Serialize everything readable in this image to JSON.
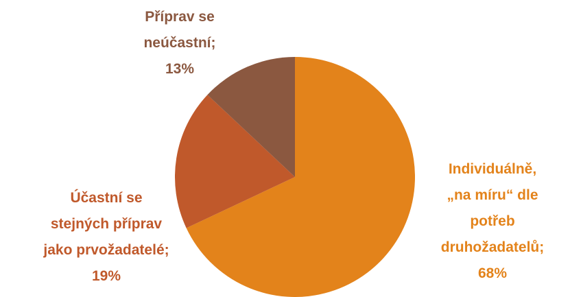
{
  "chart_data": {
    "type": "pie",
    "categories": [
      "Individuálně,\n„na míru“ dle\npotřeb\ndruhožadatelů",
      "Účastní se\nstejných příprav\njako prvožadatelé",
      "Příprav se\nneúčastní"
    ],
    "values": [
      68,
      19,
      13
    ],
    "value_labels": [
      "68%",
      "19%",
      "13%"
    ],
    "label_separator": ";",
    "colors": [
      "#E3831B",
      "#C0592B",
      "#8B5840"
    ],
    "label_colors": [
      "#E3831B",
      "#C0592B",
      "#8B5840"
    ],
    "start_angle": 0,
    "direction": "clockwise"
  }
}
